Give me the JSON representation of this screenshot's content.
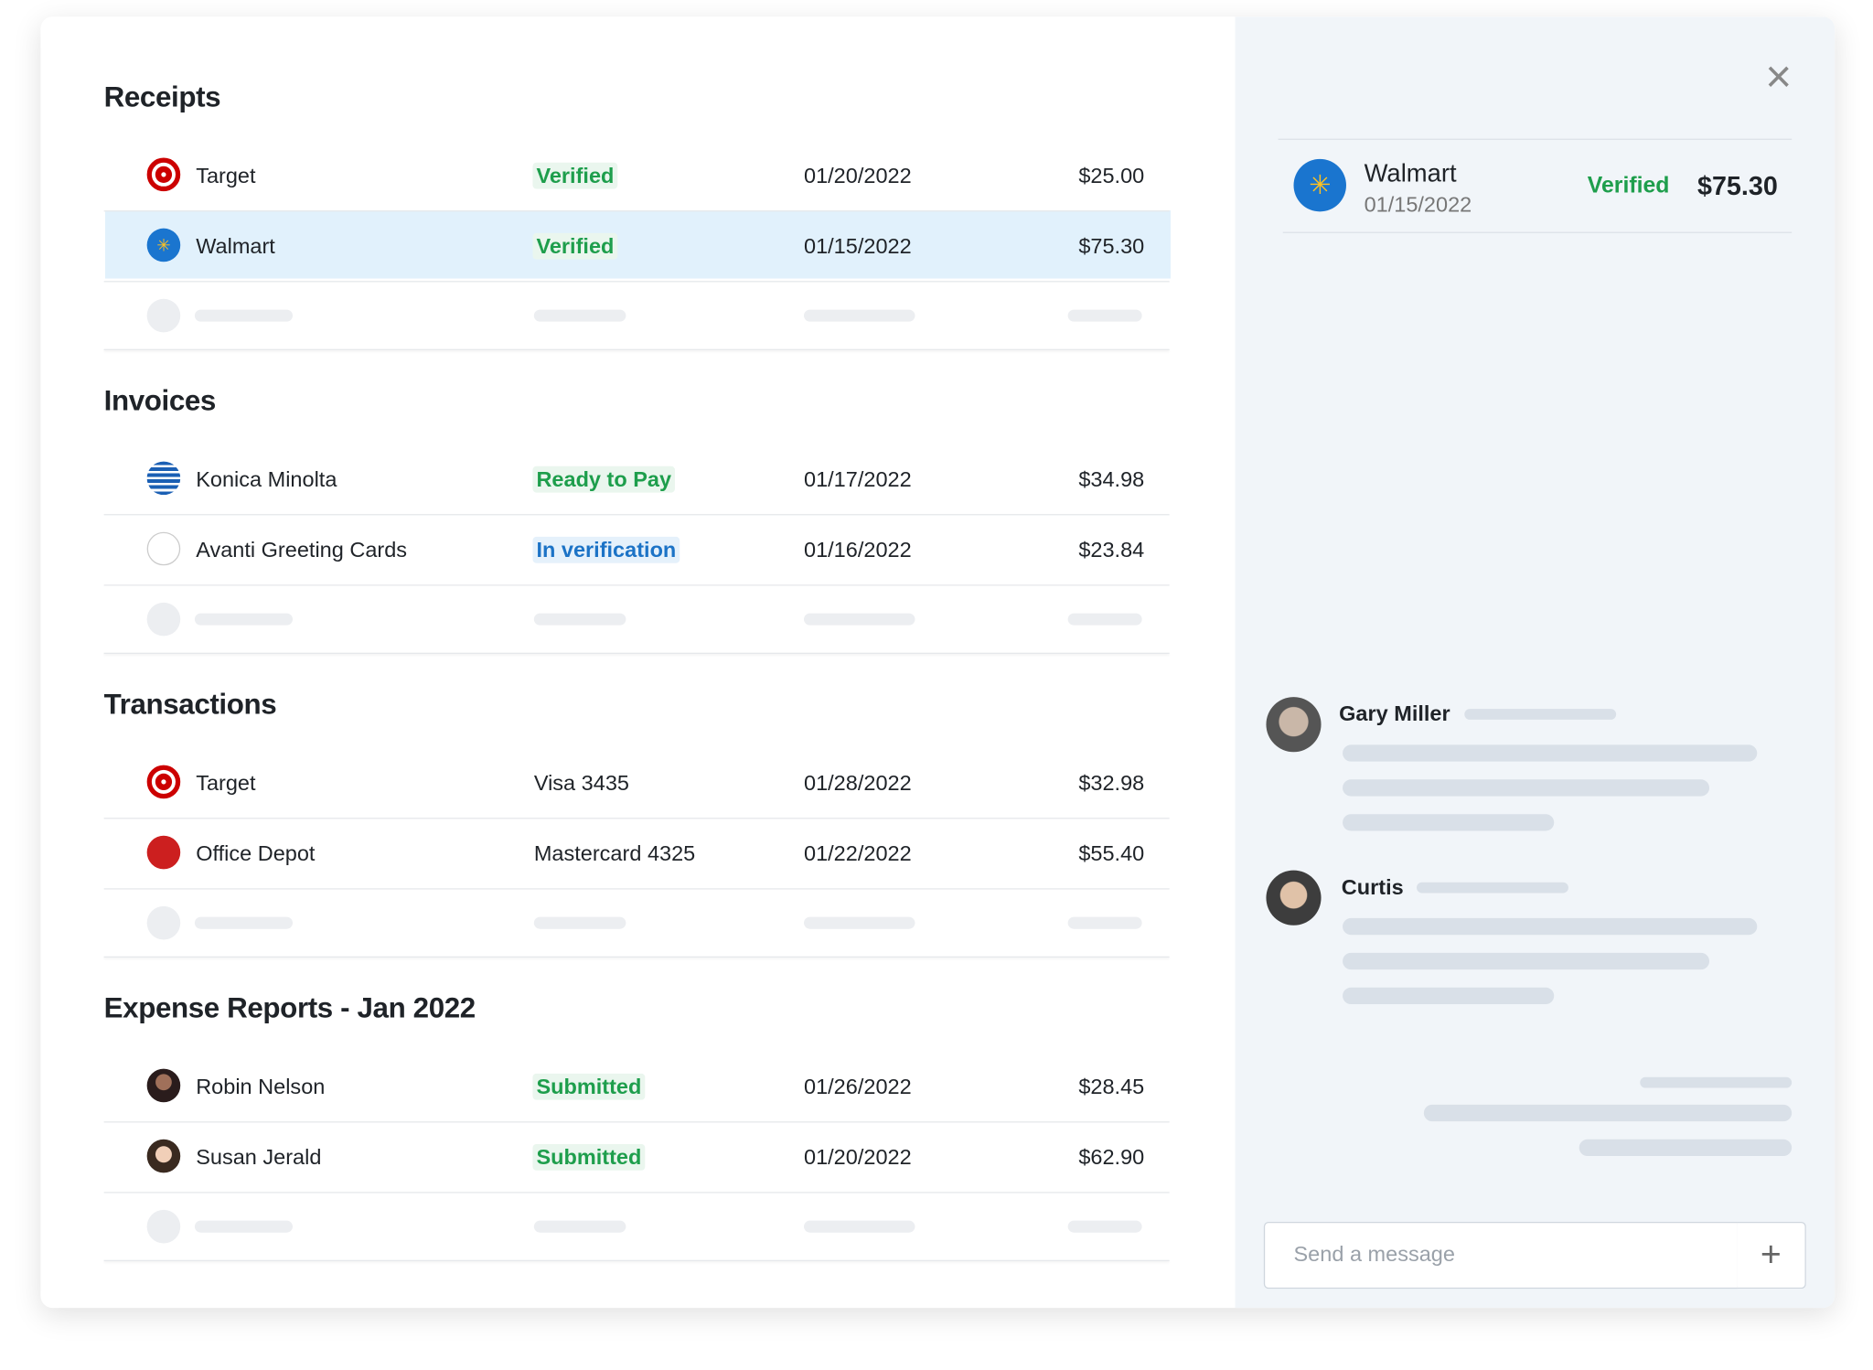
{
  "sections": [
    {
      "title": "Receipts",
      "rows": [
        {
          "name": "Target",
          "info": "Verified",
          "date": "01/20/2022",
          "amount": "$25.00"
        },
        {
          "name": "Walmart",
          "info": "Verified",
          "date": "01/15/2022",
          "amount": "$75.30"
        }
      ]
    },
    {
      "title": "Invoices",
      "rows": [
        {
          "name": "Konica Minolta",
          "info": "Ready to Pay",
          "date": "01/17/2022",
          "amount": "$34.98"
        },
        {
          "name": "Avanti Greeting Cards",
          "info": "In verification",
          "date": "01/16/2022",
          "amount": "$23.84"
        }
      ]
    },
    {
      "title": "Transactions",
      "rows": [
        {
          "name": "Target",
          "info": "Visa 3435",
          "date": "01/28/2022",
          "amount": "$32.98"
        },
        {
          "name": "Office Depot",
          "info": "Mastercard 4325",
          "date": "01/22/2022",
          "amount": "$55.40"
        }
      ]
    },
    {
      "title": "Expense Reports - Jan 2022",
      "rows": [
        {
          "name": "Robin Nelson",
          "info": "Submitted",
          "date": "01/26/2022",
          "amount": "$28.45"
        },
        {
          "name": "Susan Jerald",
          "info": "Submitted",
          "date": "01/20/2022",
          "amount": "$62.90"
        }
      ]
    }
  ],
  "detail": {
    "name": "Walmart",
    "date": "01/15/2022",
    "status": "Verified",
    "amount": "$75.30"
  },
  "chat": {
    "messages": [
      {
        "author": "Gary Miller"
      },
      {
        "author": "Curtis"
      }
    ],
    "input_placeholder": "Send a message"
  }
}
